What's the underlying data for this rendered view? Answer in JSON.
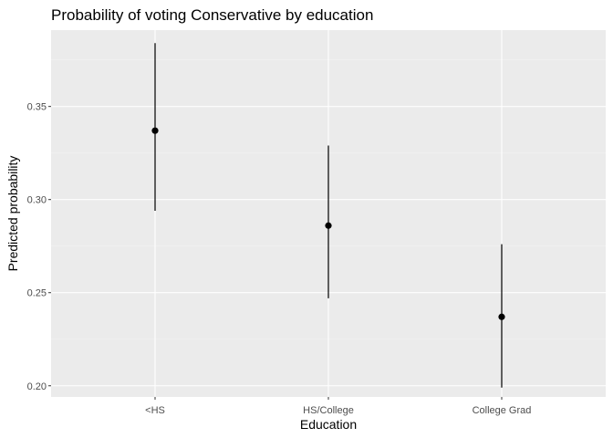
{
  "chart_data": {
    "type": "pointrange",
    "title": "Probability of voting Conservative by education",
    "xlabel": "Education",
    "ylabel": "Predicted probability",
    "categories": [
      "<HS",
      "HS/College",
      "College Grad"
    ],
    "points": [
      {
        "category": "<HS",
        "estimate": 0.337,
        "lower": 0.294,
        "upper": 0.384
      },
      {
        "category": "HS/College",
        "estimate": 0.286,
        "lower": 0.247,
        "upper": 0.329
      },
      {
        "category": "College Grad",
        "estimate": 0.237,
        "lower": 0.199,
        "upper": 0.276
      }
    ],
    "ylim": [
      0.194,
      0.391
    ],
    "yticks": [
      0.2,
      0.25,
      0.3,
      0.35
    ],
    "ytick_labels": [
      "0.20",
      "0.25",
      "0.30",
      "0.35"
    ],
    "grid": true,
    "colors": {
      "panel_background": "#ebebeb",
      "grid_major": "#ffffff",
      "grid_minor": "#f2f2f2",
      "point": "#000000",
      "tick_label": "#4d4d4d"
    }
  }
}
